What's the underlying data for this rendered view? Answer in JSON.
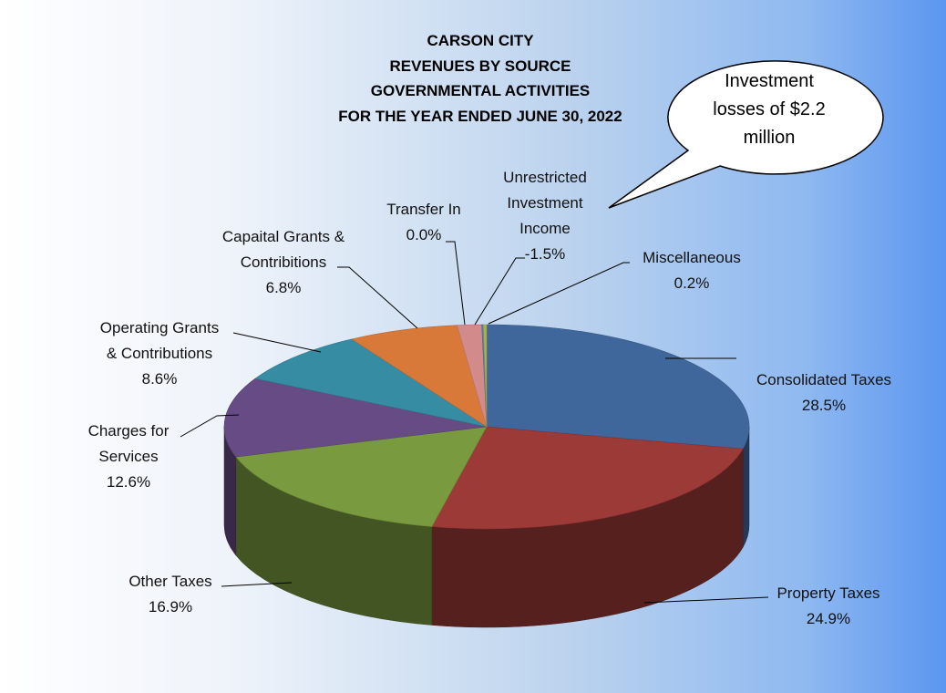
{
  "title": [
    "CARSON CITY",
    "REVENUES BY SOURCE",
    "GOVERNMENTAL  ACTIVITIES",
    "FOR THE YEAR ENDED JUNE 30, 2022"
  ],
  "callout": [
    "Investment",
    "losses of $2.2",
    "million"
  ],
  "chart_data": {
    "type": "pie",
    "title": "CARSON CITY REVENUES BY SOURCE GOVERNMENTAL ACTIVITIES FOR THE YEAR ENDED JUNE 30, 2022",
    "slices": [
      {
        "label": [
          "Consolidated Taxes"
        ],
        "value_label": "28.5%",
        "value": 28.5,
        "color": "#3f679c"
      },
      {
        "label": [
          "Property Taxes"
        ],
        "value_label": "24.9%",
        "value": 24.9,
        "color": "#9b3a37"
      },
      {
        "label": [
          "Other Taxes"
        ],
        "value_label": "16.9%",
        "value": 16.9,
        "color": "#7a9a40"
      },
      {
        "label": [
          "Charges for",
          "Services"
        ],
        "value_label": "12.6%",
        "value": 12.6,
        "color": "#664b84"
      },
      {
        "label": [
          "Operating Grants",
          "& Contributions"
        ],
        "value_label": "8.6%",
        "value": 8.6,
        "color": "#358ca3"
      },
      {
        "label": [
          "Capaital Grants &",
          "Contribitions"
        ],
        "value_label": "6.8%",
        "value": 6.8,
        "color": "#d8793a"
      },
      {
        "label": [
          "Unrestricted",
          "Investment",
          "Income"
        ],
        "value_label": "-1.5%",
        "value": -1.5,
        "color": "#d28a8a"
      },
      {
        "label": [
          "Transfer In"
        ],
        "value_label": "0.0%",
        "value": 0.0,
        "color": "#4a7fc0"
      },
      {
        "label": [
          "Miscellaneous"
        ],
        "value_label": "0.2%",
        "value": 0.2,
        "color": "#a8b24a"
      }
    ]
  }
}
